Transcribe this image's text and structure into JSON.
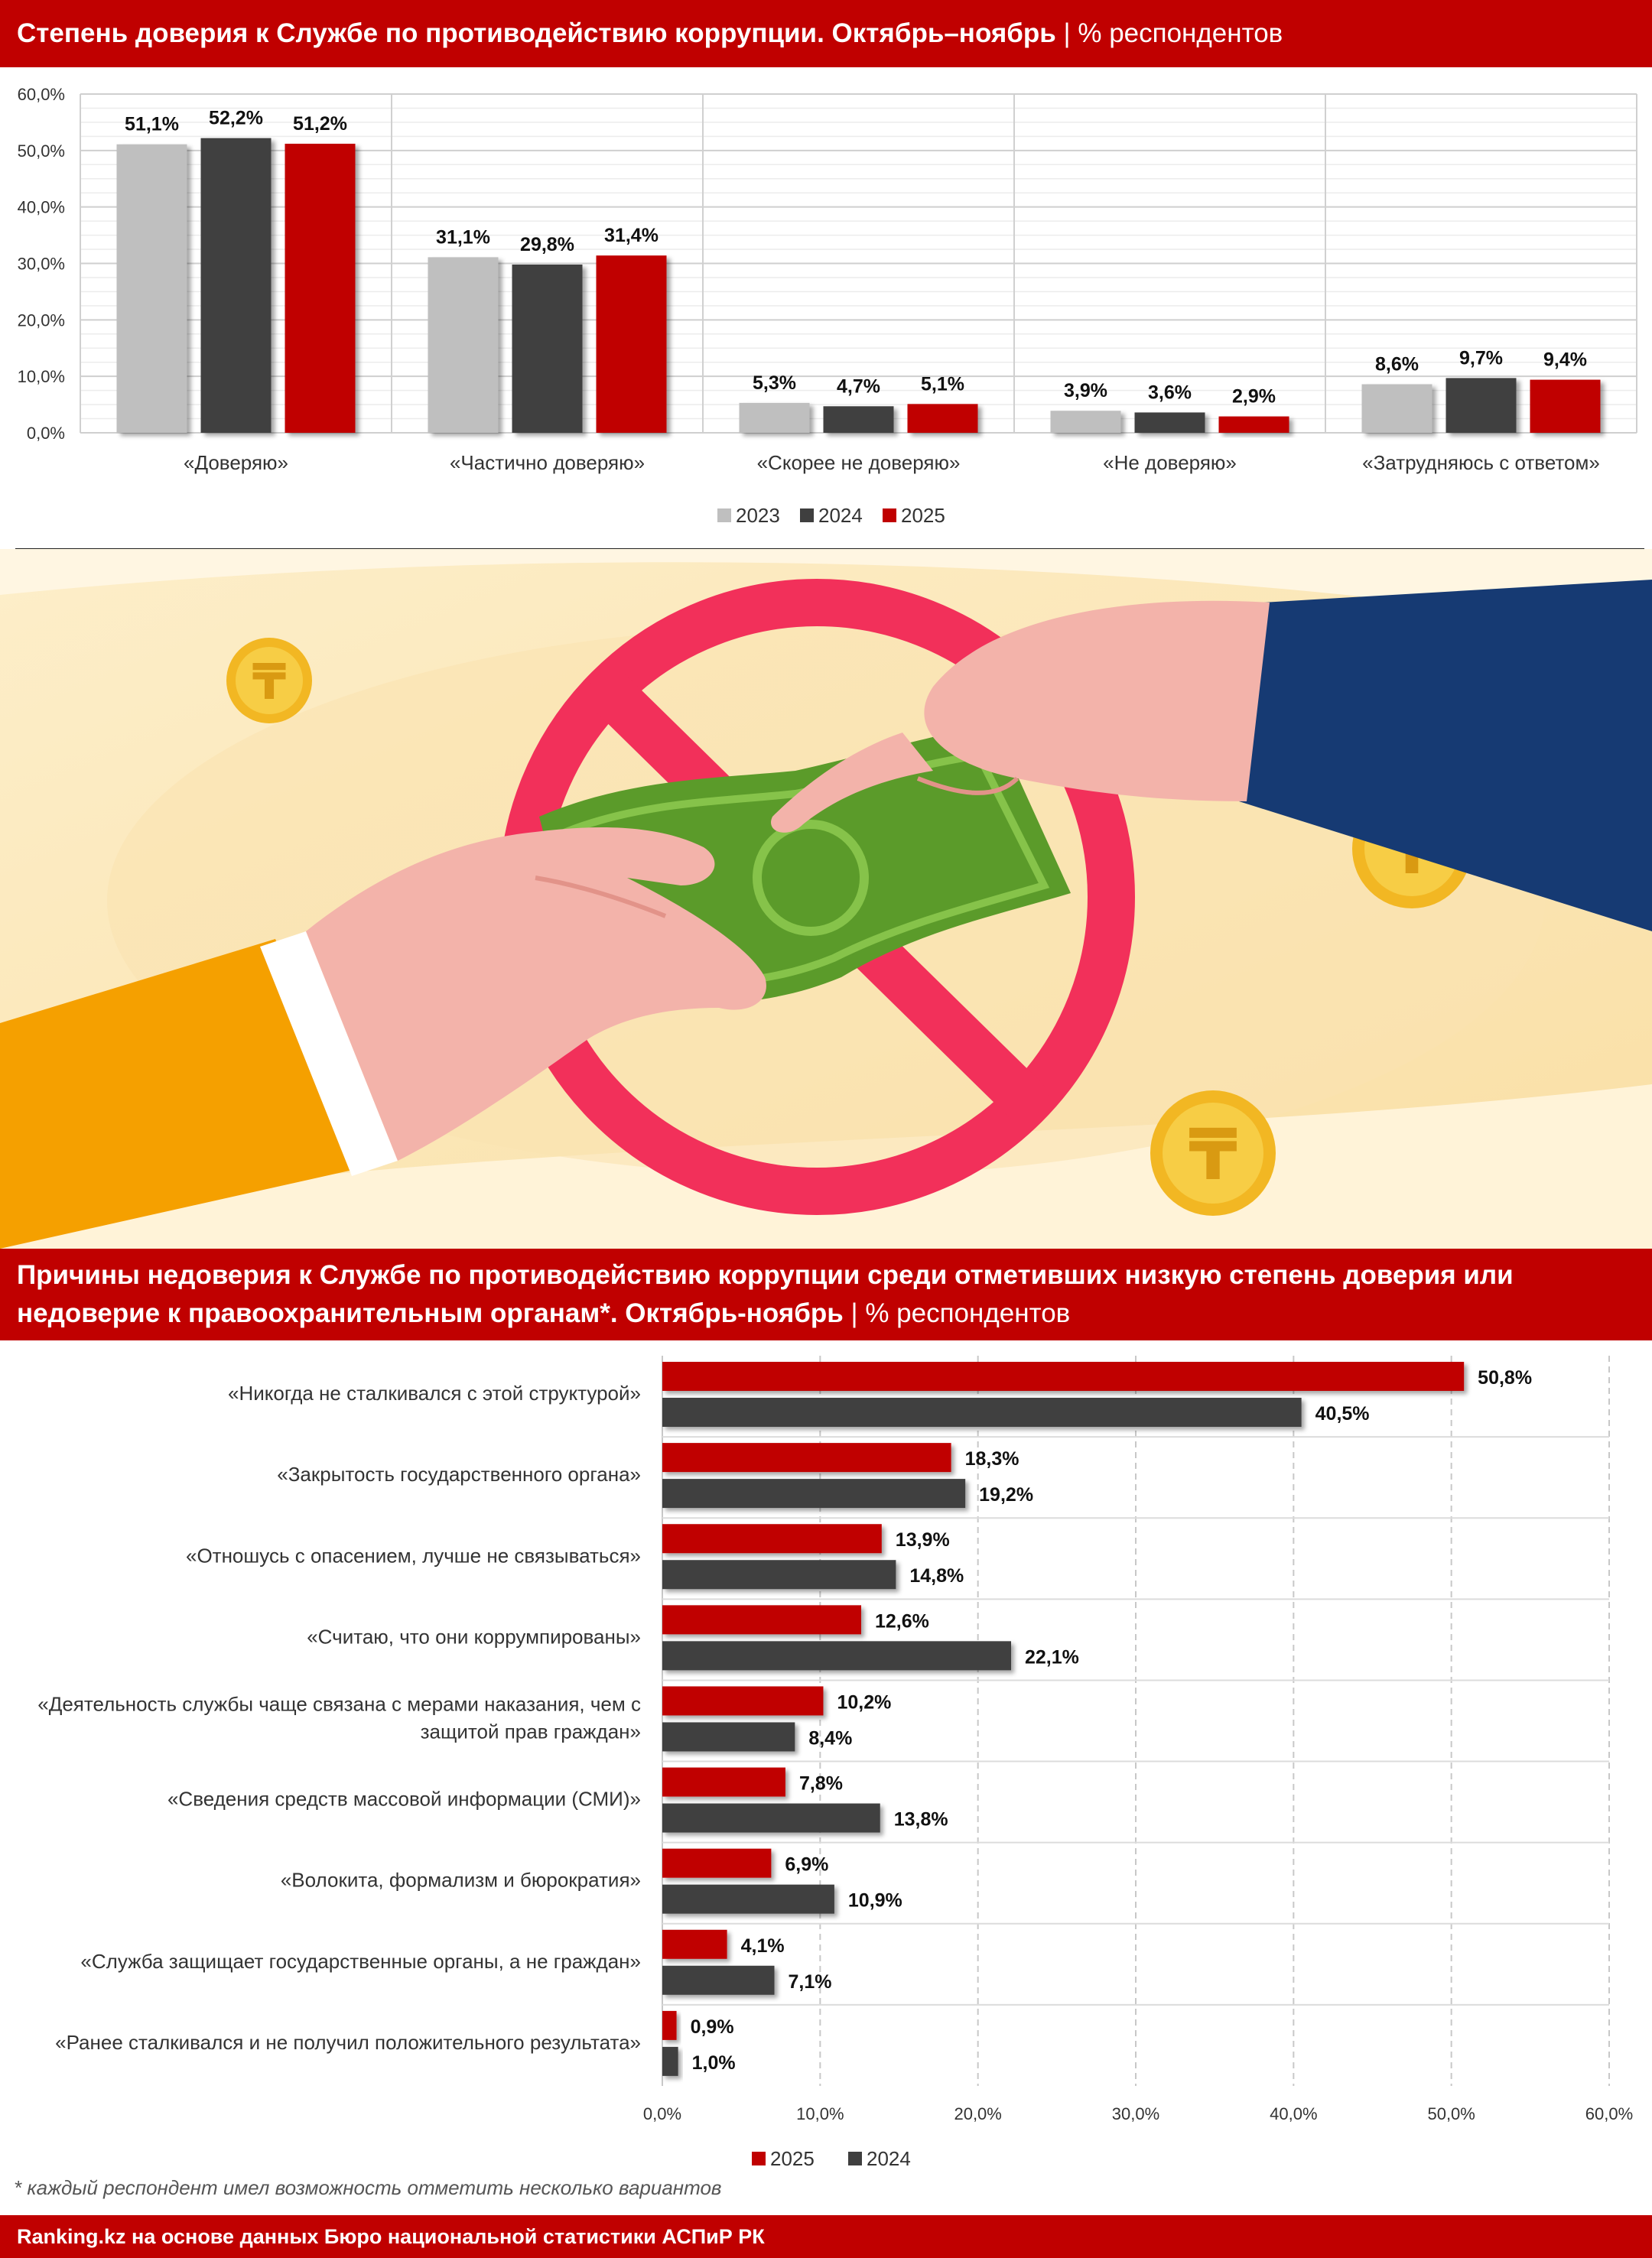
{
  "colors": {
    "accent": "#c00000",
    "s2023": "#bfbfbf",
    "s2024": "#3f3f3f",
    "s2025": "#c00000"
  },
  "banner1": {
    "title": "Степень доверия к Службе по противодействию коррупции. Октябрь–ноябрь",
    "separator": " | ",
    "unit": "% респондентов"
  },
  "banner2": {
    "title_line1": "Причины недоверия к Службе по противодействию коррупции среди отметивших низкую степень доверия или",
    "title_line2": "недоверие к правоохранительным органам*. Октябрь-ноябрь",
    "separator": " | ",
    "unit": "% респондентов"
  },
  "footnote": "* каждый респондент имел возможность отметить несколько вариантов",
  "footer": "Ranking.kz на основе данных Бюро национальной статистики АСПиР РК",
  "illustration": {
    "coin_glyph": "₸",
    "icons": [
      "hand-giving-money-icon",
      "hand-receiving-icon",
      "prohibition-sign-icon",
      "banknote-icon",
      "tenge-coin-icon"
    ]
  },
  "chart_data": [
    {
      "type": "bar",
      "categories": [
        "«Доверяю»",
        "«Частично доверяю»",
        "«Скорее не доверяю»",
        "«Не доверяю»",
        "«Затрудняюсь с ответом»"
      ],
      "series": [
        {
          "name": "2023",
          "values": [
            51.1,
            31.1,
            5.3,
            3.9,
            8.6
          ],
          "labels": [
            "51,1%",
            "31,1%",
            "5,3%",
            "3,9%",
            "8,6%"
          ]
        },
        {
          "name": "2024",
          "values": [
            52.2,
            29.8,
            4.7,
            3.6,
            9.7
          ],
          "labels": [
            "52,2%",
            "29,8%",
            "4,7%",
            "3,6%",
            "9,7%"
          ]
        },
        {
          "name": "2025",
          "values": [
            51.2,
            31.4,
            5.1,
            2.9,
            9.4
          ],
          "labels": [
            "51,2%",
            "31,4%",
            "5,1%",
            "2,9%",
            "9,4%"
          ]
        }
      ],
      "ylim": [
        0,
        60
      ],
      "yticks": [
        "0,0%",
        "10,0%",
        "20,0%",
        "30,0%",
        "40,0%",
        "50,0%",
        "60,0%"
      ],
      "grid": true,
      "legend": "bottom-center"
    },
    {
      "type": "bar",
      "orientation": "horizontal",
      "categories": [
        "«Никогда не сталкивался с этой структурой»",
        "«Закрытость государственного органа»",
        "«Отношусь с опасением, лучше не связываться»",
        "«Считаю, что они коррумпированы»",
        "«Деятельность службы чаще связана с мерами наказания, чем с защитой прав граждан»",
        "«Сведения средств массовой информации (СМИ)»",
        "«Волокита, формализм и бюрократия»",
        "«Служба защищает государственные органы, а не граждан»",
        "«Ранее сталкивался и не получил положительного результата»"
      ],
      "category_lines": [
        [
          "«Никогда не сталкивался с этой структурой»"
        ],
        [
          "«Закрытость государственного органа»"
        ],
        [
          "«Отношусь с опасением, лучше не связываться»"
        ],
        [
          "«Считаю, что они коррумпированы»"
        ],
        [
          "«Деятельность службы чаще связана с мерами наказания, чем с",
          "защитой прав граждан»"
        ],
        [
          "«Сведения средств массовой информации (СМИ)»"
        ],
        [
          "«Волокита, формализм и бюрократия»"
        ],
        [
          "«Служба защищает государственные органы, а не граждан»"
        ],
        [
          "«Ранее сталкивался и не получил положительного результата»"
        ]
      ],
      "series": [
        {
          "name": "2025",
          "values": [
            50.8,
            18.3,
            13.9,
            12.6,
            10.2,
            7.8,
            6.9,
            4.1,
            0.9
          ],
          "labels": [
            "50,8%",
            "18,3%",
            "13,9%",
            "12,6%",
            "10,2%",
            "7,8%",
            "6,9%",
            "4,1%",
            "0,9%"
          ]
        },
        {
          "name": "2024",
          "values": [
            40.5,
            19.2,
            14.8,
            22.1,
            8.4,
            13.8,
            10.9,
            7.1,
            1.0
          ],
          "labels": [
            "40,5%",
            "19,2%",
            "14,8%",
            "22,1%",
            "8,4%",
            "13,8%",
            "10,9%",
            "7,1%",
            "1,0%"
          ]
        }
      ],
      "xlim": [
        0,
        60
      ],
      "xticks": [
        "0,0%",
        "10,0%",
        "20,0%",
        "30,0%",
        "40,0%",
        "50,0%",
        "60,0%"
      ],
      "grid": true,
      "legend": "bottom-center"
    }
  ]
}
